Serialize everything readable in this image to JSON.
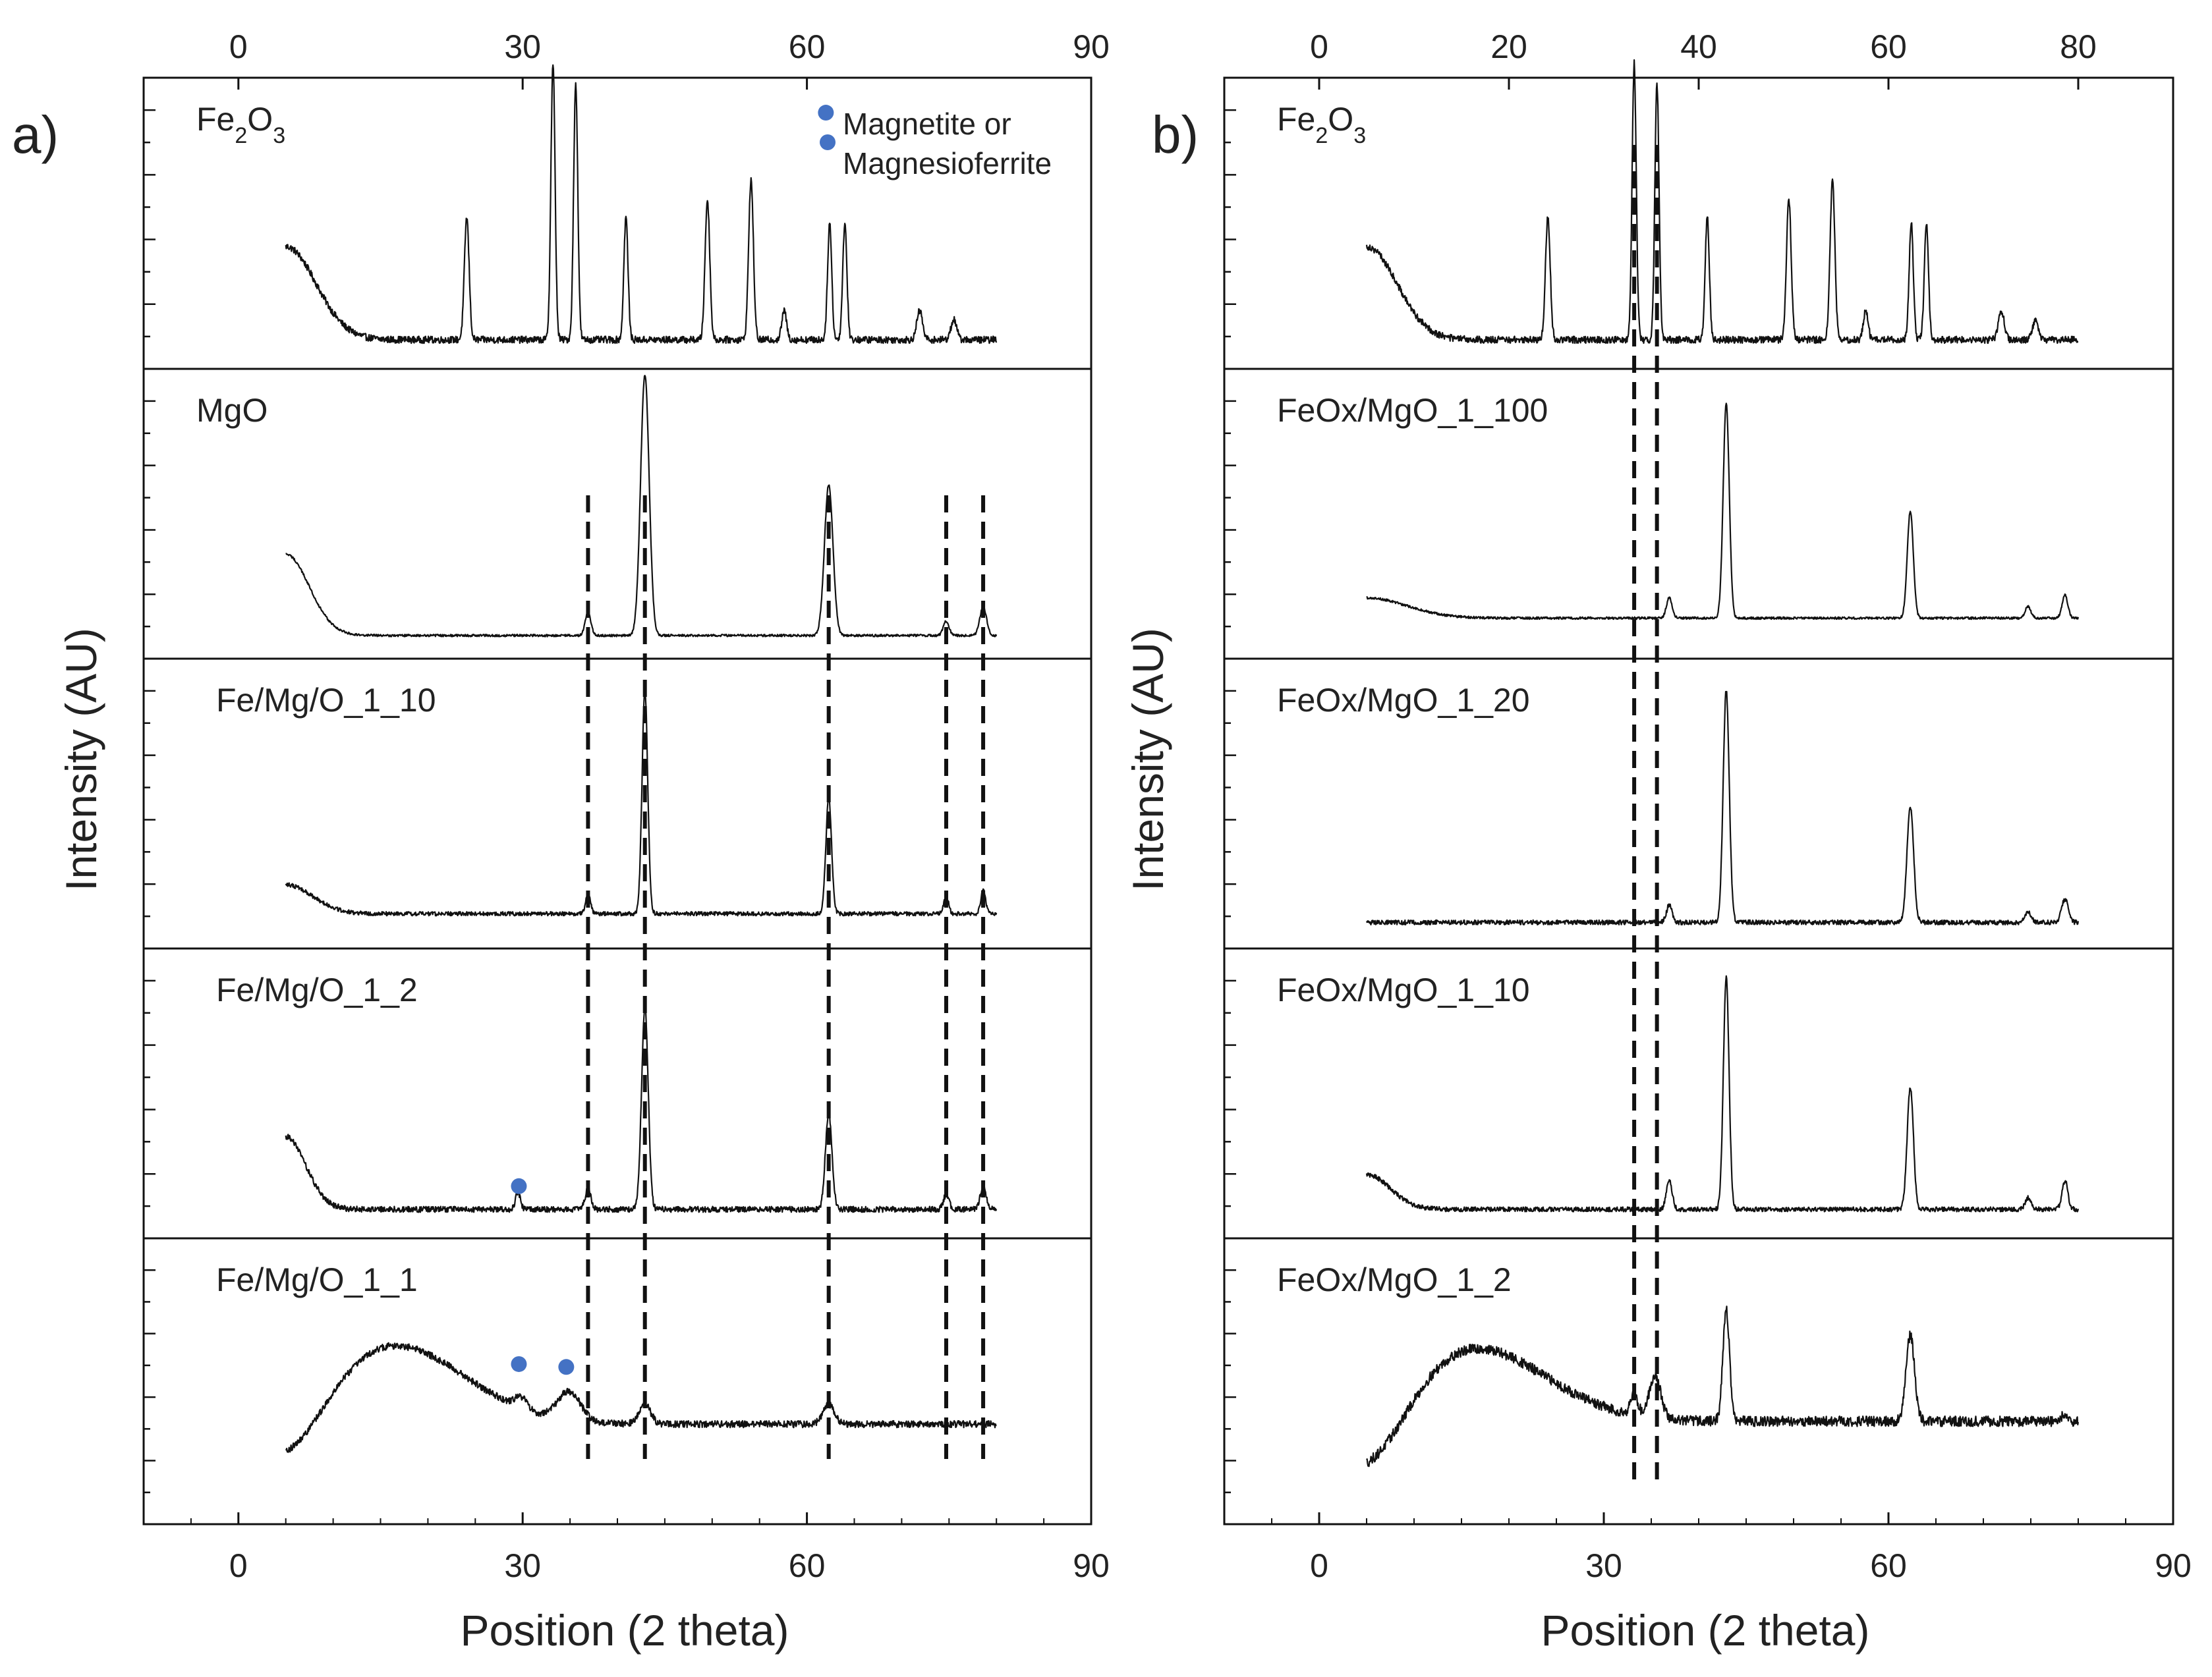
{
  "chart_data": [
    {
      "type": "line",
      "panel_label": "a)",
      "xlabel": "Position (2 theta)",
      "ylabel": "Intensity (AU)",
      "x_range": [
        -10,
        90
      ],
      "bottom_ticks": [
        "0",
        "30",
        "60",
        "90"
      ],
      "top_ticks": [
        "0",
        "30",
        "60",
        "90"
      ],
      "legend": {
        "text_line1": "Magnetite or",
        "text_line2": "Magnesioferrite",
        "marker_color": "#4472c4"
      },
      "reference_lines": [
        36.9,
        42.9,
        62.3,
        74.7,
        78.6
      ],
      "stacked_series": [
        {
          "name": "Fe2O3",
          "label_base": "Fe",
          "label_sub1": "2",
          "label_mid": "O",
          "label_sub2": "3",
          "start": 5,
          "end": 80,
          "baseline": 0.1,
          "noise": 0.012,
          "background": [
            {
              "amp": 0.32,
              "center": 5,
              "width": 4.5
            }
          ],
          "peaks": [
            [
              24.1,
              0.42,
              0.25
            ],
            [
              33.2,
              0.95,
              0.22
            ],
            [
              35.6,
              0.88,
              0.22
            ],
            [
              40.9,
              0.42,
              0.22
            ],
            [
              49.5,
              0.48,
              0.25
            ],
            [
              54.1,
              0.55,
              0.25
            ],
            [
              57.6,
              0.1,
              0.25
            ],
            [
              62.4,
              0.4,
              0.22
            ],
            [
              64.0,
              0.4,
              0.22
            ],
            [
              71.9,
              0.1,
              0.3
            ],
            [
              75.5,
              0.07,
              0.3
            ]
          ],
          "markers": [
            {
              "x": 62.0,
              "level": 0.88
            }
          ]
        },
        {
          "name": "MgO",
          "label_text": "MgO",
          "start": 5,
          "end": 80,
          "baseline": 0.08,
          "noise": 0.004,
          "background": [
            {
              "amp": 0.28,
              "center": 5,
              "width": 3.5
            }
          ],
          "peaks": [
            [
              36.9,
              0.08,
              0.3
            ],
            [
              42.9,
              0.9,
              0.45
            ],
            [
              62.3,
              0.52,
              0.45
            ],
            [
              74.7,
              0.05,
              0.3
            ],
            [
              78.6,
              0.1,
              0.35
            ]
          ],
          "markers": []
        },
        {
          "name": "Fe/Mg/O_1_10",
          "label_text": "Fe/Mg/O_1_10",
          "start": 5,
          "end": 80,
          "baseline": 0.12,
          "noise": 0.007,
          "background": [
            {
              "amp": 0.1,
              "center": 5,
              "width": 4
            }
          ],
          "peaks": [
            [
              36.9,
              0.07,
              0.25
            ],
            [
              42.9,
              0.77,
              0.3
            ],
            [
              62.3,
              0.4,
              0.3
            ],
            [
              74.7,
              0.06,
              0.25
            ],
            [
              78.6,
              0.08,
              0.25
            ]
          ],
          "markers": []
        },
        {
          "name": "Fe/Mg/O_1_2",
          "label_text": "Fe/Mg/O_1_2",
          "start": 5,
          "end": 80,
          "baseline": 0.1,
          "noise": 0.01,
          "background": [
            {
              "amp": 0.25,
              "center": 5,
              "width": 3
            }
          ],
          "peaks": [
            [
              29.5,
              0.06,
              0.25
            ],
            [
              36.9,
              0.07,
              0.3
            ],
            [
              42.9,
              0.7,
              0.35
            ],
            [
              62.3,
              0.33,
              0.35
            ],
            [
              74.7,
              0.05,
              0.3
            ],
            [
              78.6,
              0.08,
              0.3
            ]
          ],
          "markers": [
            {
              "x": 29.6,
              "level": 0.18
            }
          ]
        },
        {
          "name": "Fe/Mg/O_1_1",
          "label_text": "Fe/Mg/O_1_1",
          "start": 5,
          "end": 80,
          "baseline": 0.35,
          "noise": 0.012,
          "background": [
            {
              "amp": 0.28,
              "center": 16,
              "width": 11
            },
            {
              "amp": -0.2,
              "center": 5,
              "width": 6
            }
          ],
          "peaks": [
            [
              29.8,
              0.04,
              0.6
            ],
            [
              34.9,
              0.1,
              1.2
            ],
            [
              42.9,
              0.07,
              0.6
            ],
            [
              62.3,
              0.07,
              0.6
            ]
          ],
          "markers": [
            {
              "x": 29.6,
              "level": 0.56
            },
            {
              "x": 34.6,
              "level": 0.55
            }
          ]
        }
      ]
    },
    {
      "type": "line",
      "panel_label": "b)",
      "xlabel": "Position (2 theta)",
      "ylabel": "Intensity (AU)",
      "x_range": [
        -10,
        90
      ],
      "bottom_ticks": [
        "0",
        "30",
        "60",
        "90"
      ],
      "top_ticks": [
        "0",
        "20",
        "40",
        "60",
        "80"
      ],
      "reference_lines": [
        33.2,
        35.6
      ],
      "stacked_series": [
        {
          "name": "Fe2O3",
          "label_base": "Fe",
          "label_sub1": "2",
          "label_mid": "O",
          "label_sub2": "3",
          "start": 5,
          "end": 80,
          "baseline": 0.1,
          "noise": 0.012,
          "background": [
            {
              "amp": 0.32,
              "center": 5,
              "width": 4.5
            }
          ],
          "peaks": [
            [
              24.1,
              0.42,
              0.25
            ],
            [
              33.2,
              0.95,
              0.22
            ],
            [
              35.6,
              0.88,
              0.22
            ],
            [
              40.9,
              0.42,
              0.22
            ],
            [
              49.5,
              0.48,
              0.25
            ],
            [
              54.1,
              0.55,
              0.25
            ],
            [
              57.6,
              0.1,
              0.25
            ],
            [
              62.4,
              0.4,
              0.22
            ],
            [
              64.0,
              0.4,
              0.22
            ],
            [
              71.9,
              0.1,
              0.3
            ],
            [
              75.5,
              0.07,
              0.3
            ]
          ],
          "markers": []
        },
        {
          "name": "FeOx/MgO_1_100",
          "label_text": "FeOx/MgO_1_100",
          "start": 5,
          "end": 80,
          "baseline": 0.14,
          "noise": 0.004,
          "background": [
            {
              "amp": 0.07,
              "center": 5,
              "width": 6
            }
          ],
          "peaks": [
            [
              36.9,
              0.07,
              0.3
            ],
            [
              42.9,
              0.74,
              0.32
            ],
            [
              62.3,
              0.37,
              0.32
            ],
            [
              74.7,
              0.04,
              0.3
            ],
            [
              78.6,
              0.08,
              0.3
            ]
          ],
          "markers": []
        },
        {
          "name": "FeOx/MgO_1_20",
          "label_text": "FeOx/MgO_1_20",
          "start": 5,
          "end": 80,
          "baseline": 0.09,
          "noise": 0.008,
          "background": [],
          "peaks": [
            [
              36.9,
              0.06,
              0.3
            ],
            [
              42.9,
              0.8,
              0.32
            ],
            [
              62.3,
              0.4,
              0.35
            ],
            [
              74.7,
              0.04,
              0.3
            ],
            [
              78.6,
              0.08,
              0.35
            ]
          ],
          "markers": []
        },
        {
          "name": "FeOx/MgO_1_10",
          "label_text": "FeOx/MgO_1_10",
          "start": 5,
          "end": 80,
          "baseline": 0.1,
          "noise": 0.008,
          "background": [
            {
              "amp": 0.12,
              "center": 5,
              "width": 3.5
            }
          ],
          "peaks": [
            [
              36.9,
              0.1,
              0.3
            ],
            [
              42.9,
              0.8,
              0.3
            ],
            [
              62.3,
              0.42,
              0.33
            ],
            [
              74.7,
              0.04,
              0.3
            ],
            [
              78.6,
              0.1,
              0.3
            ]
          ],
          "markers": []
        },
        {
          "name": "FeOx/MgO_1_2",
          "label_text": "FeOx/MgO_1_2",
          "start": 5,
          "end": 80,
          "baseline": 0.36,
          "noise": 0.018,
          "background": [
            {
              "amp": 0.26,
              "center": 16,
              "width": 11
            },
            {
              "amp": -0.24,
              "center": 5,
              "width": 6
            }
          ],
          "peaks": [
            [
              33.2,
              0.07,
              0.4
            ],
            [
              35.4,
              0.15,
              0.6
            ],
            [
              42.9,
              0.39,
              0.35
            ],
            [
              62.3,
              0.3,
              0.45
            ],
            [
              78.6,
              0.03,
              0.3
            ]
          ],
          "markers": []
        }
      ]
    }
  ]
}
